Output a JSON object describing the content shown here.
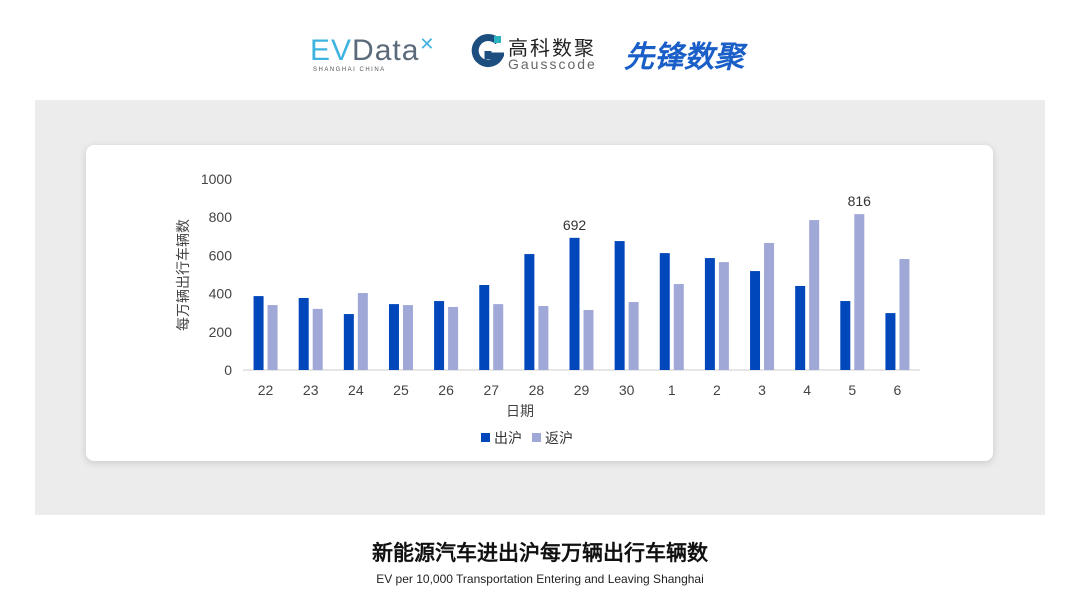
{
  "logos": {
    "evdata": "EVData",
    "evdata_sub": "SHANGHAI CHINA",
    "gauss_cn": "高科数聚",
    "gauss_en": "Gausscode",
    "xianfeng": "先锋数聚"
  },
  "footer": {
    "title": "新能源汽车进出沪每万辆出行车辆数",
    "subtitle": "EV per 10,000 Transportation Entering and Leaving Shanghai"
  },
  "chart_data": {
    "type": "bar",
    "xlabel": "日期",
    "ylabel": "每万辆出行车辆数",
    "ylim": [
      0,
      1000
    ],
    "yticks": [
      0,
      200,
      400,
      600,
      800,
      1000
    ],
    "categories": [
      "22",
      "23",
      "24",
      "25",
      "26",
      "27",
      "28",
      "29",
      "30",
      "1",
      "2",
      "3",
      "4",
      "5",
      "6"
    ],
    "series": [
      {
        "name": "出沪",
        "color": "#0047bb",
        "values": [
          387,
          377,
          293,
          345,
          361,
          445,
          607,
          692,
          675,
          612,
          586,
          518,
          440,
          361,
          298
        ]
      },
      {
        "name": "返沪",
        "color": "#a0a8d8",
        "values": [
          340,
          320,
          403,
          340,
          330,
          345,
          335,
          314,
          356,
          450,
          565,
          665,
          785,
          816,
          581
        ]
      }
    ],
    "data_labels": [
      {
        "series": 0,
        "category": "29",
        "text": "692"
      },
      {
        "series": 1,
        "category": "5",
        "text": "816"
      }
    ],
    "legend": "bottom",
    "grid": false
  }
}
